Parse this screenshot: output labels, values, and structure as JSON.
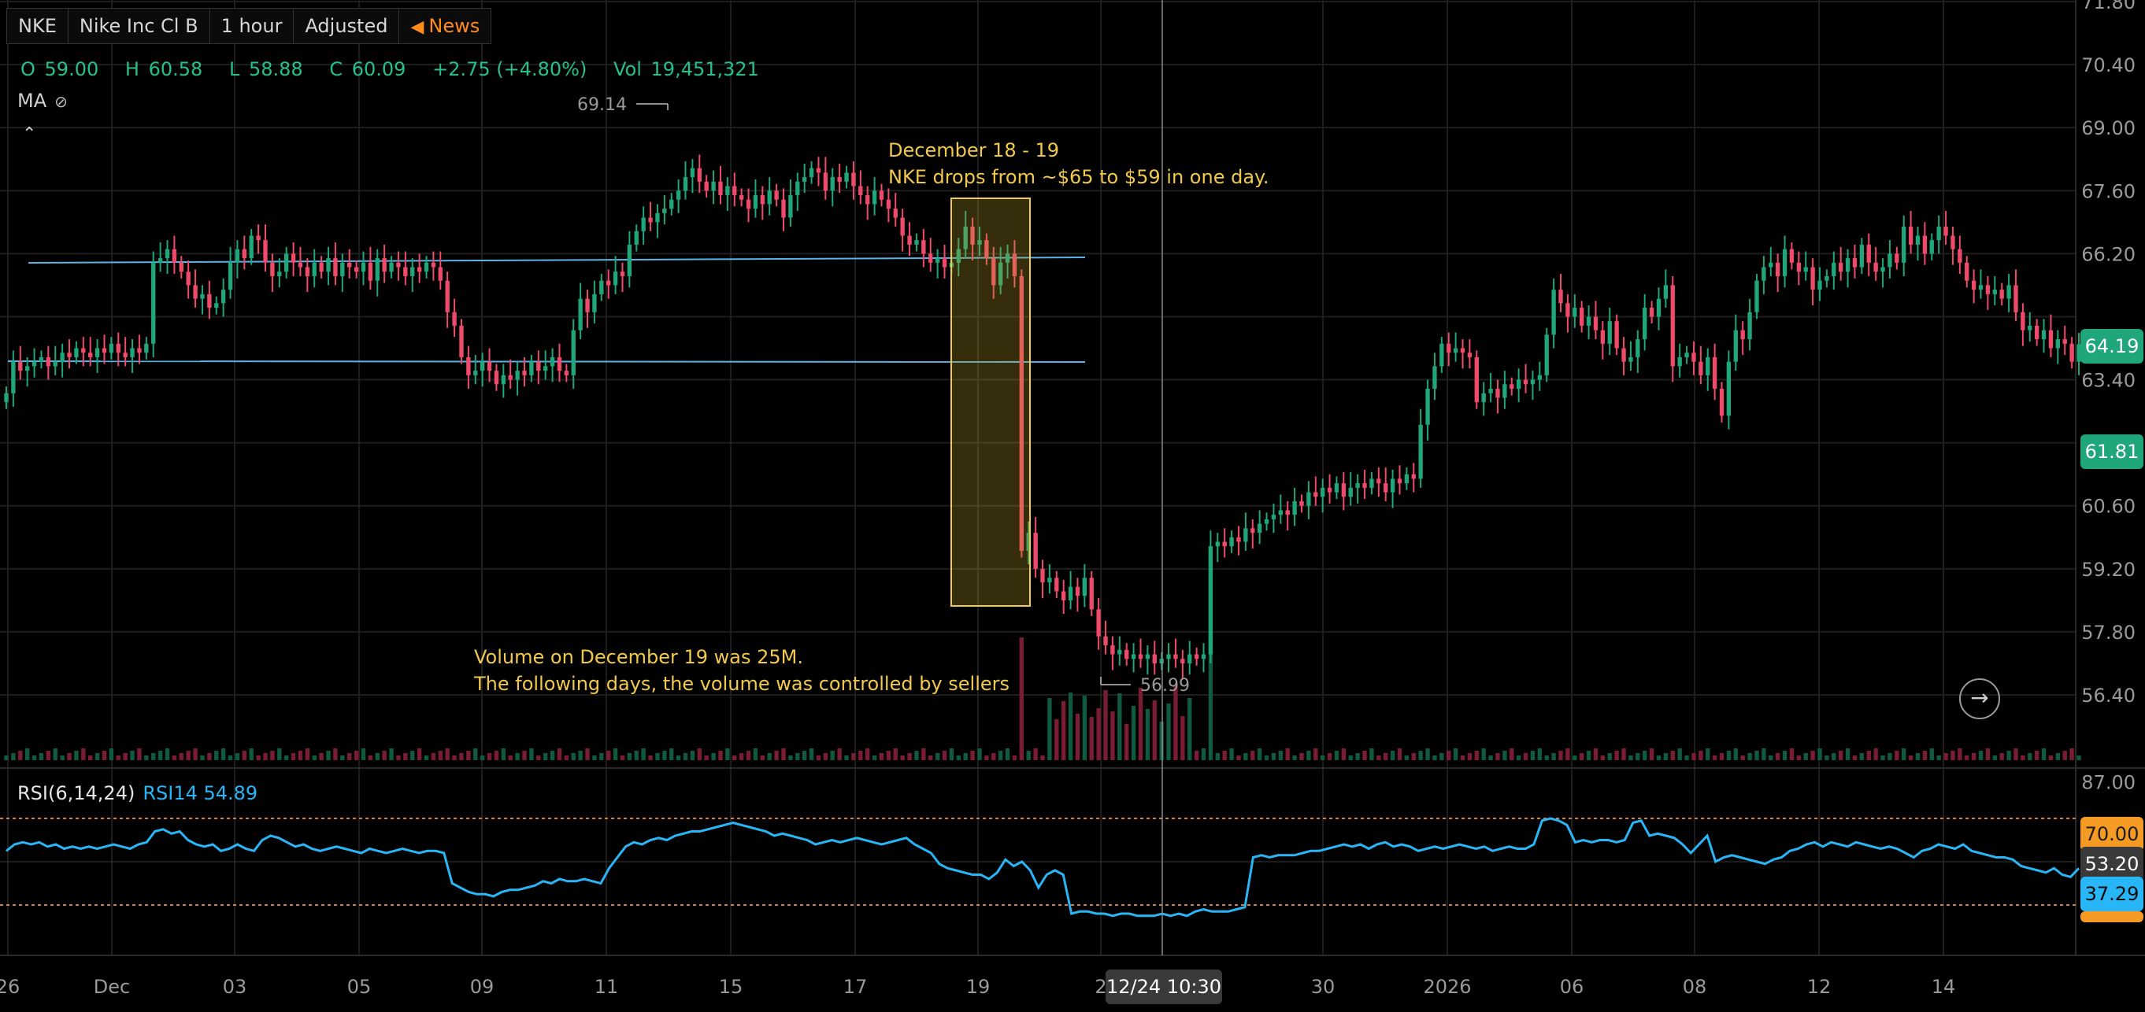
{
  "header": {
    "symbol": "NKE",
    "name": "Nike Inc Cl B",
    "interval": "1 hour",
    "adjustment": "Adjusted",
    "news_label": "News",
    "news_icon": "megaphone-icon"
  },
  "ohlc": {
    "o_label": "O",
    "o": "59.00",
    "h_label": "H",
    "h": "60.58",
    "l_label": "L",
    "l": "58.88",
    "c_label": "C",
    "c": "60.09",
    "change": "+2.75 (+4.80%)",
    "vol_label": "Vol",
    "vol": "19,451,321",
    "color": "#27c08a"
  },
  "indicators": {
    "ma_label": "MA",
    "ma_icon": "eye-off-icon",
    "collapse_icon": "caret-up-icon",
    "rsi_label": "RSI(6,14,24)",
    "rsi_value_label": "RSI14 54.89"
  },
  "price_tags": {
    "last": "64.19",
    "crosshair": "61.81",
    "up_color": "#1fa67a",
    "down_color": "#ef4a6a"
  },
  "rsi_tags": {
    "overbought": "70.00",
    "current": "53.20",
    "secondary": "37.29"
  },
  "crosshair_time": "12/24 10:30",
  "scroll_icon": "arrow-right-circle-icon",
  "annotations": {
    "drop_title": "December 18 - 19",
    "drop_text": "NKE drops from ~$65 to $59 in one day.",
    "volume_line1": "Volume on December 19 was 25M.",
    "volume_line2": "The following days, the volume was controlled by sellers",
    "high_marker": "69.14",
    "low_marker": "56.99"
  },
  "chart_data": {
    "type": "candlestick",
    "symbol": "NKE",
    "price_axis": {
      "ticks": [
        56.4,
        57.8,
        59.2,
        60.6,
        62.0,
        63.4,
        64.8,
        66.2,
        67.6,
        69.0,
        70.4,
        71.8
      ],
      "range": [
        55.6,
        71.8
      ]
    },
    "rsi_axis": {
      "ticks": [
        87.0
      ],
      "overbought": 70.0,
      "oversold": 30.0
    },
    "x_tick_labels": [
      "26",
      "Dec",
      "03",
      "05",
      "09",
      "11",
      "15",
      "17",
      "19",
      "2",
      "30",
      "2026",
      "06",
      "08",
      "12",
      "14"
    ],
    "close_path": [
      63.1,
      63.8,
      63.6,
      63.7,
      63.8,
      63.9,
      63.7,
      63.8,
      64.0,
      63.9,
      64.1,
      64.0,
      63.9,
      64.1,
      64.0,
      64.2,
      64.0,
      63.9,
      64.1,
      64.0,
      64.2,
      66.0,
      66.1,
      66.3,
      66.0,
      65.8,
      65.5,
      65.2,
      65.3,
      65.0,
      65.1,
      65.4,
      66.0,
      66.3,
      66.1,
      66.6,
      66.5,
      66.0,
      65.7,
      65.8,
      66.2,
      66.0,
      65.9,
      65.7,
      66.0,
      65.8,
      66.1,
      65.7,
      66.0,
      65.9,
      65.8,
      66.0,
      65.6,
      66.1,
      65.8,
      66.0,
      65.9,
      65.7,
      65.9,
      65.8,
      66.0,
      65.9,
      65.6,
      64.9,
      64.6,
      63.9,
      63.5,
      63.6,
      63.8,
      63.6,
      63.3,
      63.5,
      63.4,
      63.6,
      63.5,
      63.8,
      63.6,
      63.7,
      63.9,
      63.6,
      63.5,
      64.5,
      65.2,
      64.9,
      65.3,
      65.6,
      65.5,
      65.8,
      65.7,
      66.4,
      66.7,
      67.0,
      66.9,
      67.1,
      67.2,
      67.4,
      67.6,
      67.9,
      68.1,
      67.8,
      67.6,
      67.8,
      67.5,
      67.7,
      67.5,
      67.4,
      67.2,
      67.5,
      67.3,
      67.6,
      67.4,
      67.0,
      67.5,
      67.8,
      67.9,
      68.1,
      68.0,
      67.6,
      67.9,
      67.8,
      68.0,
      67.7,
      67.5,
      67.3,
      67.6,
      67.4,
      67.2,
      67.0,
      66.6,
      66.4,
      66.5,
      66.2,
      66.0,
      66.1,
      65.9,
      66.0,
      66.3,
      66.8,
      66.4,
      66.5,
      66.1,
      65.5,
      66.0,
      66.2,
      65.7,
      59.6,
      60.0,
      59.2,
      58.9,
      59.0,
      58.7,
      58.5,
      58.8,
      58.6,
      59.0,
      58.3,
      57.7,
      57.5,
      57.3,
      57.4,
      57.2,
      57.3,
      57.2,
      57.3,
      57.1,
      57.2,
      57.3,
      57.2,
      57.1,
      57.3,
      57.2,
      57.3,
      59.7,
      59.8,
      59.7,
      59.9,
      59.8,
      60.1,
      60.0,
      60.2,
      60.3,
      60.4,
      60.5,
      60.4,
      60.7,
      60.6,
      60.9,
      60.8,
      61.0,
      60.9,
      61.1,
      60.8,
      61.0,
      61.1,
      61.0,
      61.2,
      61.1,
      60.9,
      61.2,
      61.1,
      61.3,
      61.2,
      62.4,
      63.2,
      63.7,
      64.2,
      64.0,
      64.1,
      64.0,
      63.9,
      62.9,
      63.1,
      63.2,
      63.0,
      63.3,
      63.2,
      63.4,
      63.3,
      63.4,
      63.5,
      64.4,
      65.4,
      65.1,
      64.8,
      65.0,
      64.6,
      64.8,
      64.5,
      64.2,
      64.7,
      64.1,
      63.8,
      63.9,
      64.3,
      65.0,
      64.8,
      65.2,
      65.5,
      63.7,
      63.9,
      64.0,
      63.8,
      63.5,
      63.9,
      63.2,
      62.6,
      63.8,
      64.5,
      64.3,
      64.9,
      65.6,
      65.9,
      66.0,
      65.7,
      66.3,
      66.0,
      65.8,
      65.9,
      65.4,
      65.6,
      65.7,
      66.0,
      65.8,
      66.1,
      65.9,
      66.4,
      66.0,
      65.8,
      65.9,
      66.2,
      66.0,
      66.8,
      66.4,
      66.6,
      66.2,
      66.5,
      66.8,
      66.6,
      66.3,
      66.0,
      65.6,
      65.4,
      65.5,
      65.3,
      65.4,
      65.2,
      65.5,
      64.9,
      64.5,
      64.6,
      64.3,
      64.5,
      64.1,
      64.3,
      64.2,
      63.8,
      64.19
    ],
    "rsi_path": [
      55,
      58,
      59,
      58,
      59,
      57,
      58,
      56,
      57,
      56,
      57,
      56,
      57,
      58,
      57,
      56,
      58,
      59,
      64,
      65,
      63,
      64,
      60,
      58,
      57,
      58,
      55,
      56,
      58,
      56,
      55,
      60,
      62,
      61,
      59,
      57,
      58,
      56,
      55,
      56,
      57,
      56,
      55,
      54,
      56,
      55,
      54,
      55,
      56,
      55,
      54,
      55,
      55,
      54,
      40,
      38,
      36,
      35,
      35,
      34,
      36,
      37,
      37,
      38,
      39,
      41,
      40,
      42,
      41,
      41,
      42,
      41,
      40,
      47,
      52,
      57,
      59,
      58,
      60,
      61,
      60,
      62,
      63,
      64,
      64,
      65,
      66,
      67,
      68,
      67,
      66,
      65,
      64,
      62,
      63,
      62,
      61,
      60,
      58,
      59,
      60,
      59,
      60,
      61,
      60,
      59,
      58,
      59,
      60,
      61,
      58,
      56,
      54,
      49,
      47,
      46,
      45,
      44,
      44,
      42,
      45,
      51,
      48,
      50,
      46,
      38,
      44,
      46,
      44,
      26,
      27,
      27,
      26,
      26,
      25,
      26,
      26,
      25,
      25,
      25,
      26,
      25,
      26,
      25,
      27,
      28,
      27,
      27,
      27,
      28,
      29,
      52,
      53,
      52,
      53,
      53,
      53,
      54,
      55,
      55,
      56,
      57,
      58,
      57,
      58,
      56,
      58,
      59,
      57,
      58,
      57,
      55,
      56,
      57,
      56,
      57,
      58,
      57,
      56,
      57,
      55,
      56,
      57,
      56,
      56,
      58,
      69,
      70,
      69,
      67,
      59,
      60,
      59,
      60,
      60,
      59,
      60,
      68,
      69,
      62,
      63,
      62,
      61,
      58,
      54,
      58,
      62,
      50,
      52,
      53,
      52,
      51,
      50,
      49,
      51,
      52,
      55,
      56,
      58,
      59,
      57,
      59,
      58,
      57,
      59,
      58,
      57,
      56,
      57,
      56,
      54,
      52,
      55,
      56,
      58,
      57,
      56,
      58,
      55,
      54,
      53,
      52,
      52,
      51,
      48,
      47,
      46,
      45,
      47,
      44,
      43,
      47
    ],
    "volume_spike_m": 25,
    "annotations": [
      "December 18 - 19",
      "NKE drops from ~$65 to $59 in one day.",
      "Volume on December 19 was 25M.",
      "The following days, the volume was controlled by sellers"
    ]
  }
}
